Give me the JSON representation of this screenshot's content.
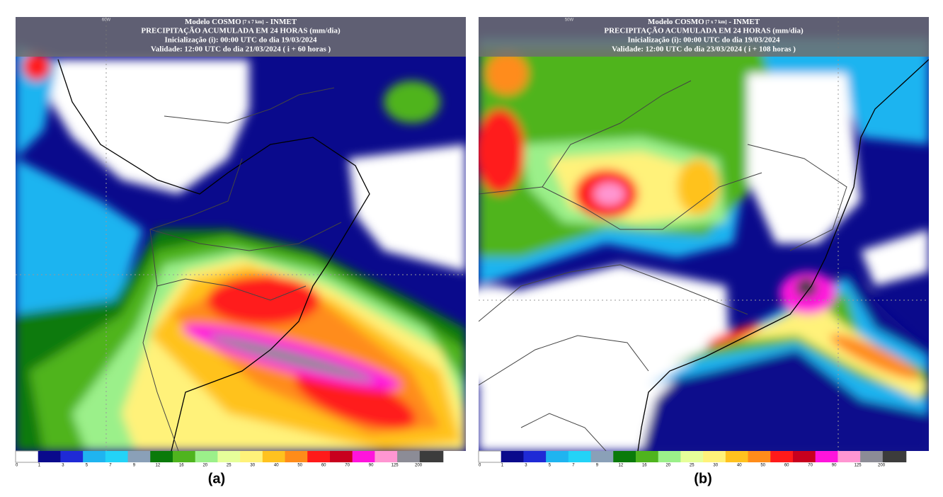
{
  "panels": [
    {
      "label": "(a)",
      "lon_label": "60W",
      "header": {
        "model": "Modelo COSMO",
        "resolution": "[7 x 7 km]",
        "source": "- INMET",
        "title": "PRECIPITAÇÃO ACUMULADA EM 24 HORAS (mm/dia)",
        "init": "Inicialização (i): 00:00 UTC do dia 19/03/2024",
        "valid": "Validade: 12:00 UTC do dia 21/03/2024 ( i + 60 horas )"
      }
    },
    {
      "label": "(b)",
      "lon_label": "50W",
      "header": {
        "model": "Modelo COSMO",
        "resolution": "[7 x 7 km]",
        "source": "- INMET",
        "title": "PRECIPITAÇÃO ACUMULADA EM 24 HORAS (mm/dia)",
        "init": "Inicialização (i): 00:00 UTC do dia 19/03/2024",
        "valid": "Validade: 12:00 UTC do dia 23/03/2024 ( i + 108 horas )"
      }
    }
  ],
  "legend": {
    "labels": [
      0,
      1,
      3,
      5,
      7,
      9,
      12,
      16,
      20,
      25,
      30,
      40,
      50,
      60,
      70,
      90,
      125,
      200
    ],
    "colors": [
      "#ffffff",
      "#0a0a8c",
      "#1f2ad6",
      "#1fb4f0",
      "#23d3f7",
      "#8aa0b8",
      "#0a7a0a",
      "#4fb41e",
      "#9bf08a",
      "#e6ff9a",
      "#fff27a",
      "#ffc21f",
      "#ff8c1a",
      "#ff1a1a",
      "#c8001e",
      "#ff14dc",
      "#ff96d2",
      "#8c8c96",
      "#3c3c3c"
    ]
  }
}
